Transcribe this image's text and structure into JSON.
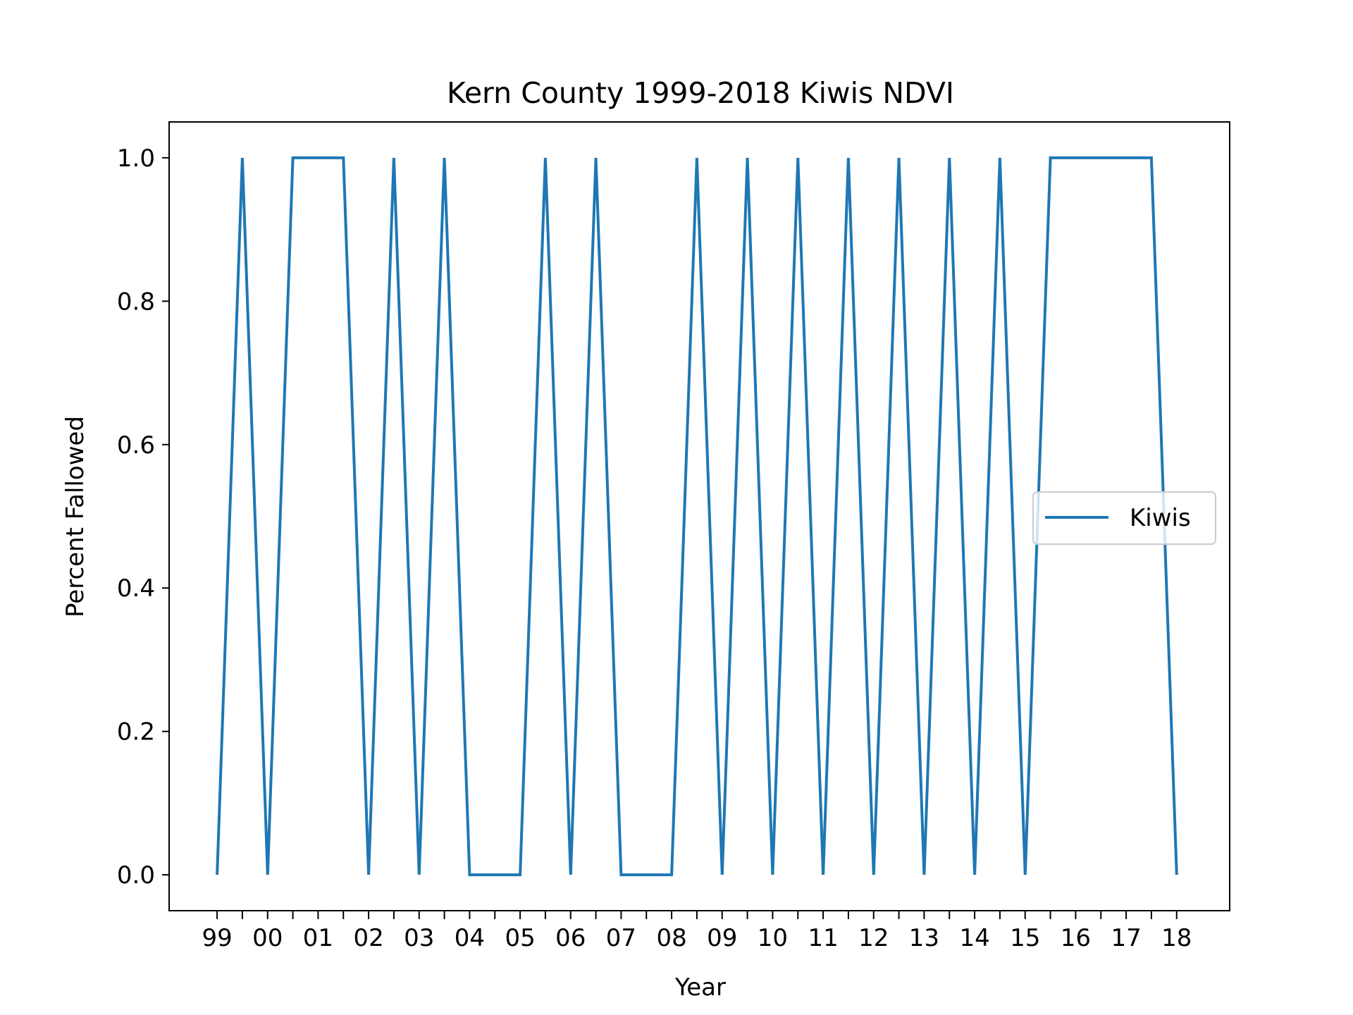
{
  "chart_data": {
    "type": "line",
    "title": "Kern County 1999-2018 Kiwis NDVI",
    "xlabel": "Year",
    "ylabel": "Percent Fallowed",
    "x_tick_labels": [
      "99",
      "00",
      "01",
      "02",
      "03",
      "04",
      "05",
      "06",
      "07",
      "08",
      "09",
      "10",
      "11",
      "12",
      "13",
      "14",
      "15",
      "16",
      "17",
      "18"
    ],
    "y_tick_labels": [
      "0.0",
      "0.2",
      "0.4",
      "0.6",
      "0.8",
      "1.0"
    ],
    "y_ticks": [
      0.0,
      0.2,
      0.4,
      0.6,
      0.8,
      1.0
    ],
    "xlim": [
      -0.95,
      20.05
    ],
    "ylim": [
      -0.05,
      1.05
    ],
    "grid": false,
    "legend_position": "center-right",
    "series": [
      {
        "name": "Kiwis",
        "color": "#1f77b4",
        "x": [
          0,
          0.5,
          1,
          1.5,
          2,
          2.5,
          3,
          3.5,
          4,
          4.5,
          5,
          5.5,
          6,
          6.5,
          7,
          7.5,
          8,
          8.5,
          9,
          9.5,
          10,
          10.5,
          11,
          11.5,
          12,
          12.5,
          13,
          13.5,
          14,
          14.5,
          15,
          15.5,
          16,
          16.5,
          17,
          17.5,
          18,
          18.5,
          19
        ],
        "values": [
          0,
          1,
          0,
          1,
          1,
          1,
          0,
          1,
          0,
          1,
          0,
          0,
          0,
          1,
          0,
          1,
          0,
          0,
          0,
          1,
          0,
          1,
          0,
          1,
          0,
          1,
          0,
          1,
          0,
          1,
          0,
          1,
          0,
          1,
          1,
          1,
          1,
          1,
          0
        ]
      }
    ]
  }
}
